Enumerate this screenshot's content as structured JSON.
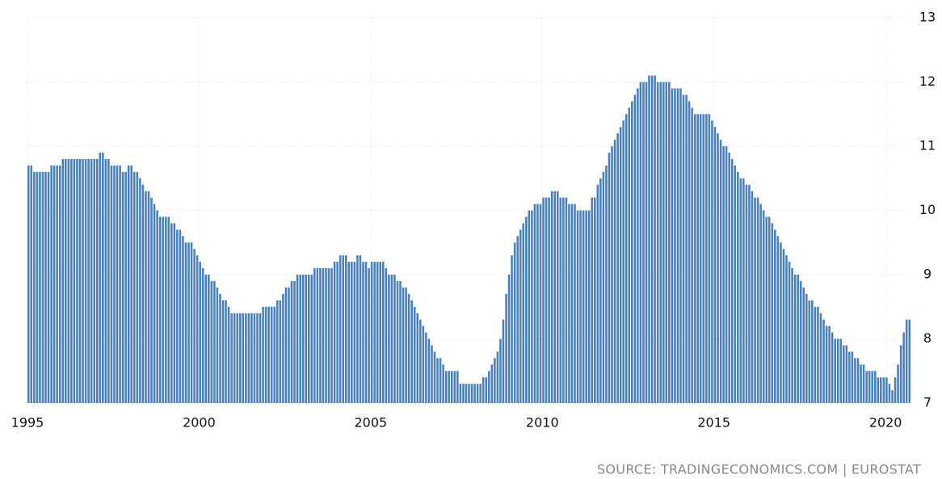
{
  "chart_data": {
    "type": "bar",
    "source": "SOURCE: TRADINGECONOMICS.COM | EUROSTAT",
    "color": "#4a80ba",
    "grid": true,
    "xlim": [
      1995,
      2020.75
    ],
    "xticks": [
      1995,
      2000,
      2005,
      2010,
      2015,
      2020
    ],
    "ylim": [
      7,
      13
    ],
    "yticks": [
      7,
      8,
      9,
      10,
      11,
      12,
      13
    ],
    "x": [
      1995,
      1995.083,
      1995.167,
      1995.25,
      1995.333,
      1995.417,
      1995.5,
      1995.583,
      1995.667,
      1995.75,
      1995.833,
      1995.917,
      1996,
      1996.083,
      1996.167,
      1996.25,
      1996.333,
      1996.417,
      1996.5,
      1996.583,
      1996.667,
      1996.75,
      1996.833,
      1996.917,
      1997,
      1997.083,
      1997.167,
      1997.25,
      1997.333,
      1997.417,
      1997.5,
      1997.583,
      1997.667,
      1997.75,
      1997.833,
      1997.917,
      1998,
      1998.083,
      1998.167,
      1998.25,
      1998.333,
      1998.417,
      1998.5,
      1998.583,
      1998.667,
      1998.75,
      1998.833,
      1998.917,
      1999,
      1999.083,
      1999.167,
      1999.25,
      1999.333,
      1999.417,
      1999.5,
      1999.583,
      1999.667,
      1999.75,
      1999.833,
      1999.917,
      2000,
      2000.083,
      2000.167,
      2000.25,
      2000.333,
      2000.417,
      2000.5,
      2000.583,
      2000.667,
      2000.75,
      2000.833,
      2000.917,
      2001,
      2001.083,
      2001.167,
      2001.25,
      2001.333,
      2001.417,
      2001.5,
      2001.583,
      2001.667,
      2001.75,
      2001.833,
      2001.917,
      2002,
      2002.083,
      2002.167,
      2002.25,
      2002.333,
      2002.417,
      2002.5,
      2002.583,
      2002.667,
      2002.75,
      2002.833,
      2002.917,
      2003,
      2003.083,
      2003.167,
      2003.25,
      2003.333,
      2003.417,
      2003.5,
      2003.583,
      2003.667,
      2003.75,
      2003.833,
      2003.917,
      2004,
      2004.083,
      2004.167,
      2004.25,
      2004.333,
      2004.417,
      2004.5,
      2004.583,
      2004.667,
      2004.75,
      2004.833,
      2004.917,
      2005,
      2005.083,
      2005.167,
      2005.25,
      2005.333,
      2005.417,
      2005.5,
      2005.583,
      2005.667,
      2005.75,
      2005.833,
      2005.917,
      2006,
      2006.083,
      2006.167,
      2006.25,
      2006.333,
      2006.417,
      2006.5,
      2006.583,
      2006.667,
      2006.75,
      2006.833,
      2006.917,
      2007,
      2007.083,
      2007.167,
      2007.25,
      2007.333,
      2007.417,
      2007.5,
      2007.583,
      2007.667,
      2007.75,
      2007.833,
      2007.917,
      2008,
      2008.083,
      2008.167,
      2008.25,
      2008.333,
      2008.417,
      2008.5,
      2008.583,
      2008.667,
      2008.75,
      2008.833,
      2008.917,
      2009,
      2009.083,
      2009.167,
      2009.25,
      2009.333,
      2009.417,
      2009.5,
      2009.583,
      2009.667,
      2009.75,
      2009.833,
      2009.917,
      2010,
      2010.083,
      2010.167,
      2010.25,
      2010.333,
      2010.417,
      2010.5,
      2010.583,
      2010.667,
      2010.75,
      2010.833,
      2010.917,
      2011,
      2011.083,
      2011.167,
      2011.25,
      2011.333,
      2011.417,
      2011.5,
      2011.583,
      2011.667,
      2011.75,
      2011.833,
      2011.917,
      2012,
      2012.083,
      2012.167,
      2012.25,
      2012.333,
      2012.417,
      2012.5,
      2012.583,
      2012.667,
      2012.75,
      2012.833,
      2012.917,
      2013,
      2013.083,
      2013.167,
      2013.25,
      2013.333,
      2013.417,
      2013.5,
      2013.583,
      2013.667,
      2013.75,
      2013.833,
      2013.917,
      2014,
      2014.083,
      2014.167,
      2014.25,
      2014.333,
      2014.417,
      2014.5,
      2014.583,
      2014.667,
      2014.75,
      2014.833,
      2014.917,
      2015,
      2015.083,
      2015.167,
      2015.25,
      2015.333,
      2015.417,
      2015.5,
      2015.583,
      2015.667,
      2015.75,
      2015.833,
      2015.917,
      2016,
      2016.083,
      2016.167,
      2016.25,
      2016.333,
      2016.417,
      2016.5,
      2016.583,
      2016.667,
      2016.75,
      2016.833,
      2016.917,
      2017,
      2017.083,
      2017.167,
      2017.25,
      2017.333,
      2017.417,
      2017.5,
      2017.583,
      2017.667,
      2017.75,
      2017.833,
      2017.917,
      2018,
      2018.083,
      2018.167,
      2018.25,
      2018.333,
      2018.417,
      2018.5,
      2018.583,
      2018.667,
      2018.75,
      2018.833,
      2018.917,
      2019,
      2019.083,
      2019.167,
      2019.25,
      2019.333,
      2019.417,
      2019.5,
      2019.583,
      2019.667,
      2019.75,
      2019.833,
      2019.917,
      2020,
      2020.083,
      2020.167,
      2020.25,
      2020.333,
      2020.417,
      2020.5,
      2020.583,
      2020.667
    ],
    "values": [
      10.7,
      10.7,
      10.6,
      10.6,
      10.6,
      10.6,
      10.6,
      10.6,
      10.7,
      10.7,
      10.7,
      10.7,
      10.8,
      10.8,
      10.8,
      10.8,
      10.8,
      10.8,
      10.8,
      10.8,
      10.8,
      10.8,
      10.8,
      10.8,
      10.8,
      10.9,
      10.9,
      10.8,
      10.8,
      10.7,
      10.7,
      10.7,
      10.7,
      10.6,
      10.6,
      10.7,
      10.7,
      10.6,
      10.6,
      10.5,
      10.4,
      10.3,
      10.3,
      10.2,
      10.1,
      10.0,
      9.9,
      9.9,
      9.9,
      9.9,
      9.8,
      9.8,
      9.7,
      9.7,
      9.6,
      9.5,
      9.5,
      9.5,
      9.4,
      9.3,
      9.2,
      9.1,
      9.0,
      9.0,
      8.9,
      8.9,
      8.8,
      8.7,
      8.6,
      8.6,
      8.5,
      8.4,
      8.4,
      8.4,
      8.4,
      8.4,
      8.4,
      8.4,
      8.4,
      8.4,
      8.4,
      8.4,
      8.5,
      8.5,
      8.5,
      8.5,
      8.5,
      8.6,
      8.6,
      8.7,
      8.8,
      8.8,
      8.9,
      8.9,
      9.0,
      9.0,
      9.0,
      9.0,
      9.0,
      9.0,
      9.1,
      9.1,
      9.1,
      9.1,
      9.1,
      9.1,
      9.1,
      9.2,
      9.2,
      9.3,
      9.3,
      9.3,
      9.2,
      9.2,
      9.2,
      9.3,
      9.3,
      9.2,
      9.2,
      9.1,
      9.2,
      9.2,
      9.2,
      9.2,
      9.2,
      9.1,
      9.0,
      9.0,
      9.0,
      8.9,
      8.9,
      8.8,
      8.8,
      8.7,
      8.6,
      8.5,
      8.4,
      8.3,
      8.2,
      8.1,
      8.0,
      7.9,
      7.8,
      7.7,
      7.7,
      7.6,
      7.5,
      7.5,
      7.5,
      7.5,
      7.5,
      7.3,
      7.3,
      7.3,
      7.3,
      7.3,
      7.3,
      7.3,
      7.3,
      7.4,
      7.4,
      7.5,
      7.6,
      7.7,
      7.8,
      8.0,
      8.3,
      8.7,
      9.0,
      9.3,
      9.5,
      9.6,
      9.7,
      9.8,
      9.9,
      10.0,
      10.0,
      10.1,
      10.1,
      10.1,
      10.2,
      10.2,
      10.2,
      10.3,
      10.3,
      10.3,
      10.2,
      10.2,
      10.2,
      10.1,
      10.1,
      10.1,
      10.0,
      10.0,
      10.0,
      10.0,
      10.0,
      10.2,
      10.2,
      10.4,
      10.5,
      10.6,
      10.7,
      10.9,
      11.0,
      11.1,
      11.2,
      11.3,
      11.4,
      11.5,
      11.6,
      11.7,
      11.8,
      11.9,
      12.0,
      12.0,
      12.0,
      12.1,
      12.1,
      12.1,
      12.0,
      12.0,
      12.0,
      12.0,
      12.0,
      11.9,
      11.9,
      11.9,
      11.9,
      11.8,
      11.8,
      11.7,
      11.6,
      11.5,
      11.5,
      11.5,
      11.5,
      11.5,
      11.5,
      11.4,
      11.3,
      11.2,
      11.1,
      11.0,
      11.0,
      10.9,
      10.8,
      10.7,
      10.6,
      10.5,
      10.5,
      10.4,
      10.4,
      10.3,
      10.2,
      10.2,
      10.1,
      10.0,
      9.9,
      9.9,
      9.8,
      9.7,
      9.6,
      9.5,
      9.4,
      9.3,
      9.2,
      9.1,
      9.0,
      9.0,
      8.9,
      8.8,
      8.7,
      8.6,
      8.6,
      8.5,
      8.5,
      8.4,
      8.3,
      8.2,
      8.2,
      8.1,
      8.0,
      8.0,
      8.0,
      7.9,
      7.9,
      7.8,
      7.8,
      7.7,
      7.7,
      7.6,
      7.6,
      7.5,
      7.5,
      7.5,
      7.5,
      7.4,
      7.4,
      7.4,
      7.4,
      7.3,
      7.2,
      7.4,
      7.6,
      7.9,
      8.1,
      8.3,
      8.3
    ]
  }
}
